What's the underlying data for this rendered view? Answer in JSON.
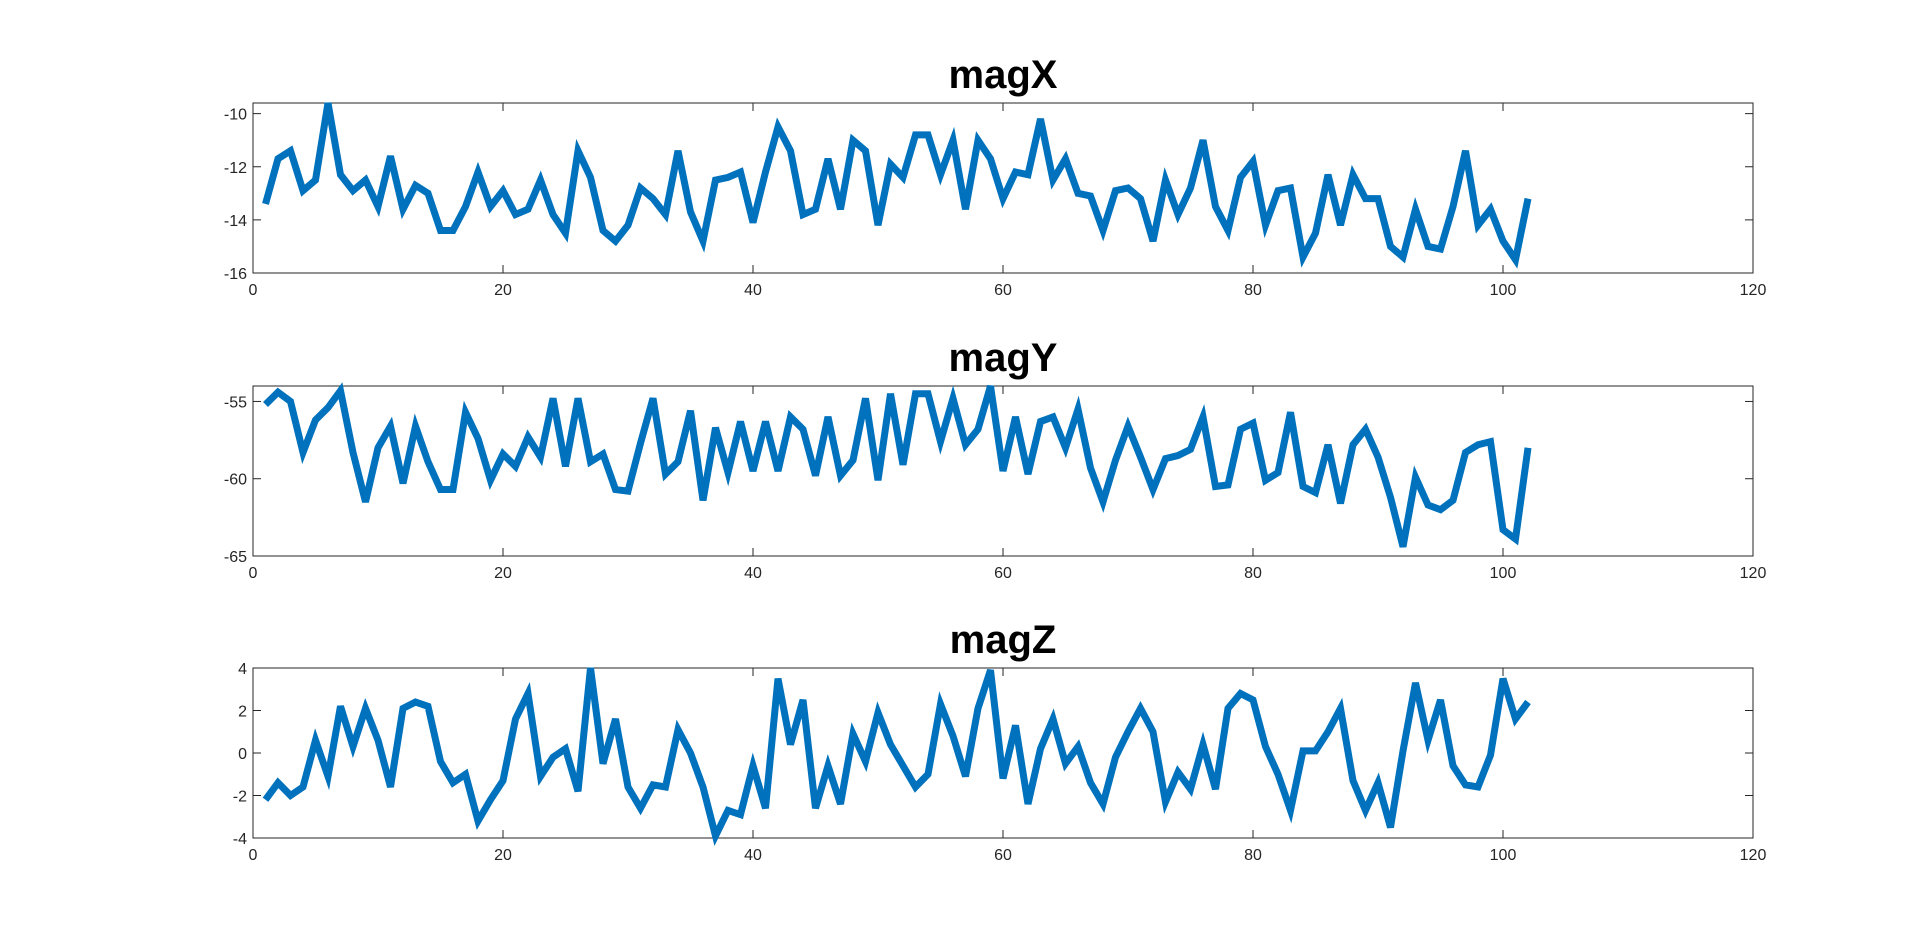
{
  "colors": {
    "line": "#0072bd",
    "axes": "#262626",
    "grid": "#e6e6e6",
    "background": "#ffffff"
  },
  "chart_data": [
    {
      "type": "line",
      "title": "magX",
      "xlabel": "",
      "ylabel": "",
      "xlim": [
        0,
        120
      ],
      "ylim": [
        -16,
        -9.6
      ],
      "xticks": [
        0,
        20,
        40,
        60,
        80,
        100,
        120
      ],
      "yticks": [
        -16,
        -14,
        -12,
        -10
      ],
      "grid": true,
      "x_start": 1,
      "values": [
        -13.4,
        -11.7,
        -11.4,
        -12.9,
        -12.5,
        -9.6,
        -12.3,
        -12.9,
        -12.5,
        -13.5,
        -11.6,
        -13.6,
        -12.7,
        -13.0,
        -14.4,
        -14.4,
        -13.5,
        -12.2,
        -13.5,
        -12.9,
        -13.8,
        -13.6,
        -12.5,
        -13.8,
        -14.5,
        -11.4,
        -12.4,
        -14.4,
        -14.8,
        -14.2,
        -12.8,
        -13.2,
        -13.8,
        -11.4,
        -13.7,
        -14.8,
        -12.5,
        -12.4,
        -12.2,
        -14.1,
        -12.2,
        -10.5,
        -11.4,
        -13.8,
        -13.6,
        -11.7,
        -13.6,
        -11.0,
        -11.4,
        -14.2,
        -11.9,
        -12.4,
        -10.8,
        -10.8,
        -12.3,
        -11.0,
        -13.6,
        -11.0,
        -11.7,
        -13.2,
        -12.2,
        -12.3,
        -10.2,
        -12.5,
        -11.7,
        -13.0,
        -13.1,
        -14.4,
        -12.9,
        -12.8,
        -13.2,
        -14.8,
        -12.5,
        -13.8,
        -12.8,
        -11.0,
        -13.5,
        -14.4,
        -12.4,
        -11.8,
        -14.2,
        -12.9,
        -12.8,
        -15.4,
        -14.5,
        -12.3,
        -14.2,
        -12.3,
        -13.2,
        -13.2,
        -15.0,
        -15.4,
        -13.6,
        -15.0,
        -15.1,
        -13.5,
        -11.4,
        -14.2,
        -13.6,
        -14.8,
        -15.5,
        -13.2
      ]
    },
    {
      "type": "line",
      "title": "magY",
      "xlabel": "",
      "ylabel": "",
      "xlim": [
        0,
        120
      ],
      "ylim": [
        -65,
        -54
      ],
      "xticks": [
        0,
        20,
        40,
        60,
        80,
        100,
        120
      ],
      "yticks": [
        -65,
        -60,
        -55
      ],
      "grid": true,
      "x_start": 1,
      "values": [
        -55.2,
        -54.4,
        -55.0,
        -58.3,
        -56.2,
        -55.4,
        -54.3,
        -58.3,
        -61.5,
        -58.0,
        -56.6,
        -60.3,
        -56.6,
        -58.9,
        -60.7,
        -60.7,
        -55.7,
        -57.4,
        -60.1,
        -58.4,
        -59.2,
        -57.3,
        -58.6,
        -54.8,
        -59.2,
        -54.8,
        -58.9,
        -58.4,
        -60.7,
        -60.8,
        -57.7,
        -54.8,
        -59.7,
        -58.9,
        -55.6,
        -61.4,
        -56.7,
        -59.6,
        -56.3,
        -59.5,
        -56.3,
        -59.5,
        -56.0,
        -56.8,
        -59.8,
        -56.0,
        -59.8,
        -58.8,
        -54.8,
        -60.1,
        -54.5,
        -59.1,
        -54.5,
        -54.5,
        -57.6,
        -54.8,
        -57.8,
        -56.8,
        -54.0,
        -59.5,
        -56.0,
        -59.7,
        -56.3,
        -56.0,
        -58.0,
        -55.5,
        -59.3,
        -61.5,
        -58.8,
        -56.6,
        -58.6,
        -60.7,
        -58.7,
        -58.5,
        -58.1,
        -56.0,
        -60.5,
        -60.4,
        -56.8,
        -56.4,
        -60.1,
        -59.6,
        -55.7,
        -60.5,
        -60.9,
        -57.8,
        -61.6,
        -57.8,
        -56.8,
        -58.6,
        -61.2,
        -64.4,
        -59.9,
        -61.7,
        -62.0,
        -61.4,
        -58.3,
        -57.8,
        -57.6,
        -63.3,
        -63.9,
        -58.0
      ]
    },
    {
      "type": "line",
      "title": "magZ",
      "xlabel": "",
      "ylabel": "",
      "xlim": [
        0,
        120
      ],
      "ylim": [
        -4,
        4
      ],
      "xticks": [
        0,
        20,
        40,
        60,
        80,
        100,
        120
      ],
      "yticks": [
        -4,
        -2,
        0,
        2,
        4
      ],
      "grid": true,
      "x_start": 1,
      "values": [
        -2.2,
        -1.4,
        -2.0,
        -1.6,
        0.6,
        -1.1,
        2.2,
        0.3,
        2.1,
        0.6,
        -1.6,
        2.1,
        2.4,
        2.2,
        -0.4,
        -1.4,
        -1.0,
        -3.2,
        -2.2,
        -1.3,
        1.6,
        2.8,
        -1.1,
        -0.2,
        0.2,
        -1.8,
        4.0,
        -0.5,
        1.6,
        -1.6,
        -2.6,
        -1.5,
        -1.6,
        1.1,
        0.0,
        -1.6,
        -3.9,
        -2.7,
        -2.9,
        -0.6,
        -2.6,
        3.5,
        0.4,
        2.5,
        -2.6,
        -0.6,
        -2.4,
        0.9,
        -0.4,
        1.9,
        0.4,
        -0.6,
        -1.6,
        -1.0,
        2.3,
        0.8,
        -1.1,
        2.1,
        3.9,
        -1.2,
        1.3,
        -2.4,
        0.2,
        1.6,
        -0.5,
        0.3,
        -1.4,
        -2.4,
        -0.2,
        1.0,
        2.1,
        1.0,
        -2.3,
        -0.9,
        -1.7,
        0.4,
        -1.7,
        2.1,
        2.8,
        2.5,
        0.3,
        -1.0,
        -2.7,
        0.1,
        0.1,
        1.0,
        2.1,
        -1.3,
        -2.7,
        -1.4,
        -3.5,
        0.1,
        3.3,
        0.6,
        2.5,
        -0.6,
        -1.5,
        -1.6,
        -0.1,
        3.5,
        1.6,
        2.4
      ]
    }
  ]
}
